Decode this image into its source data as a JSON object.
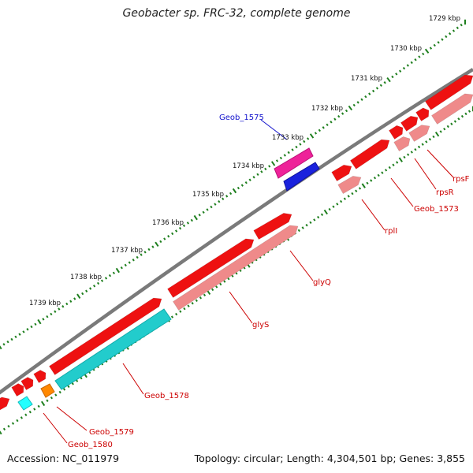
{
  "title": "Geobacter sp. FRC-32, complete genome",
  "footer": {
    "accession": "Accession: NC_011979",
    "summary": "Topology: circular; Length: 4,304,501 bp; Genes: 3,855"
  },
  "colors": {
    "backbone": "#7a7a7a",
    "tick": "#1e7f1e",
    "fwd_gene": "#ee1111",
    "rev_gene": "#ef8a8a",
    "label_red": "#cc0000",
    "label_blue": "#1111cc",
    "magenta": "#ee2299",
    "blue": "#1a22dd",
    "cyan": "#22cccc",
    "orange": "#ff8800"
  },
  "scale_labels": [
    "1729 kbp",
    "1730 kbp",
    "1731 kbp",
    "1732 kbp",
    "1733 kbp",
    "1734 kbp",
    "1735 kbp",
    "1736 kbp",
    "1737 kbp",
    "1738 kbp",
    "1739 kbp"
  ],
  "gene_labels": [
    {
      "text": "Geob_1575",
      "color": "blue"
    },
    {
      "text": "rpsF",
      "color": "red"
    },
    {
      "text": "rpsR",
      "color": "red"
    },
    {
      "text": "Geob_1573",
      "color": "red"
    },
    {
      "text": "rplI",
      "color": "red"
    },
    {
      "text": "glyQ",
      "color": "red"
    },
    {
      "text": "glyS",
      "color": "red"
    },
    {
      "text": "Geob_1578",
      "color": "red"
    },
    {
      "text": "Geob_1579",
      "color": "red"
    },
    {
      "text": "Geob_1580",
      "color": "red"
    }
  ]
}
